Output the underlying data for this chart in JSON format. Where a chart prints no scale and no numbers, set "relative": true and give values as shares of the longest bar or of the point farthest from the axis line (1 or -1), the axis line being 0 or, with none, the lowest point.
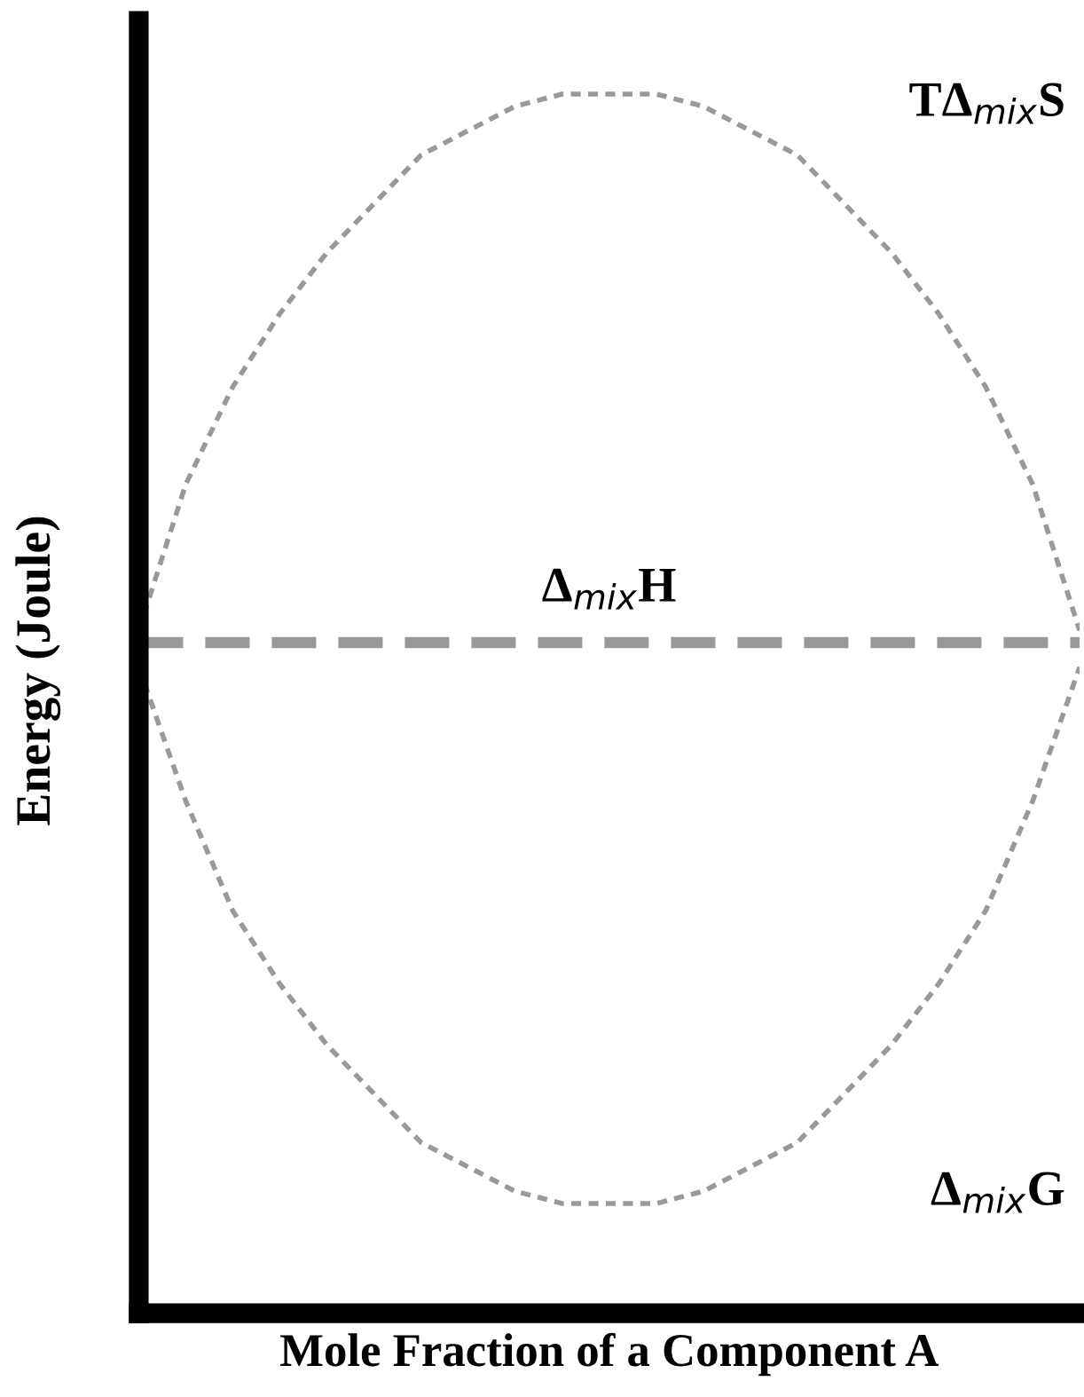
{
  "chart_data": {
    "type": "line",
    "relative": true,
    "xlabel": "Mole Fraction of a Component A",
    "ylabel": "Energy (Joule)",
    "categories": [
      null,
      null,
      null,
      null,
      null,
      null,
      null,
      null,
      null,
      null,
      null,
      null,
      null,
      null,
      null,
      null,
      null,
      null,
      null,
      null,
      null
    ],
    "series": [
      {
        "name": "TΔ$_{mix}$S",
        "color": "#999999",
        "line_style": "dotted",
        "values": [
          0.56,
          0.68,
          0.76,
          0.82,
          0.87,
          0.91,
          0.95,
          0.97,
          0.99,
          1.0,
          1.0,
          1.0,
          0.99,
          0.97,
          0.95,
          0.91,
          0.87,
          0.82,
          0.76,
          0.68,
          0.56
        ]
      },
      {
        "name": "Δ$_{mix}$H",
        "color": "#999999",
        "line_style": "dashed",
        "values": [
          0.55,
          0.55,
          0.55,
          0.55,
          0.55,
          0.55,
          0.55,
          0.55,
          0.55,
          0.55,
          0.55,
          0.55,
          0.55,
          0.55,
          0.55,
          0.55,
          0.55,
          0.55,
          0.55,
          0.55,
          0.55
        ]
      },
      {
        "name": "Δ$_{mix}$G",
        "color": "#999999",
        "line_style": "dotted",
        "values": [
          0.53,
          0.42,
          0.33,
          0.27,
          0.22,
          0.18,
          0.14,
          0.12,
          0.1,
          0.09,
          0.09,
          0.09,
          0.1,
          0.12,
          0.14,
          0.18,
          0.22,
          0.27,
          0.33,
          0.42,
          0.53
        ]
      }
    ],
    "legend": false,
    "marker": "none"
  }
}
